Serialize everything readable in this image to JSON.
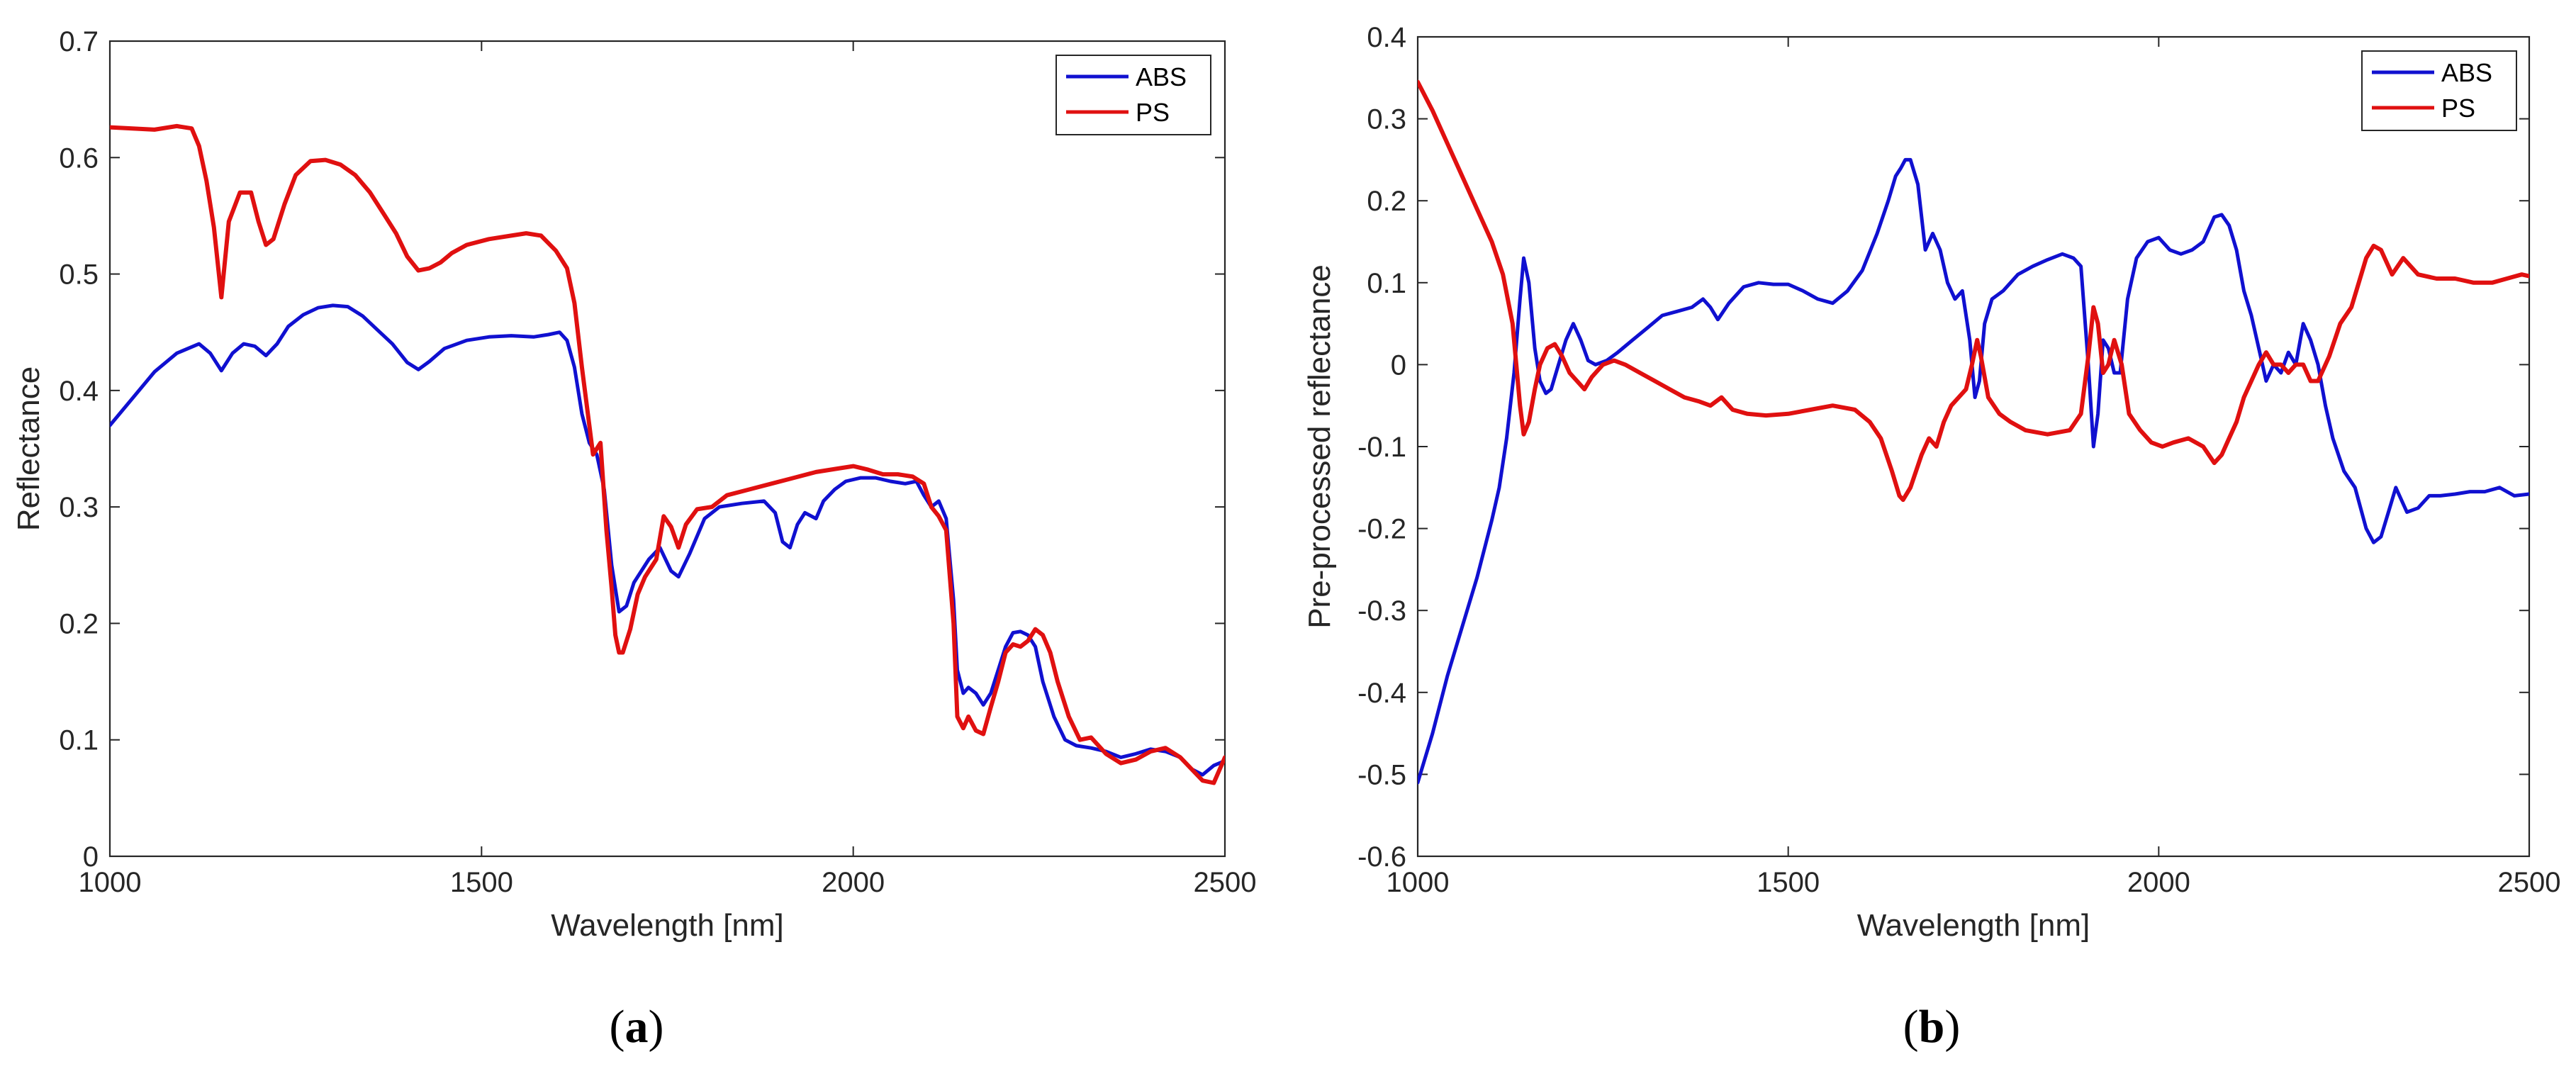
{
  "figure": {
    "caption_a": {
      "open": "(",
      "letter": "a",
      "close": ")"
    },
    "caption_b": {
      "open": "(",
      "letter": "b",
      "close": ")"
    }
  },
  "chart_data": [
    {
      "id": "a",
      "type": "line",
      "title": "",
      "xlabel": "Wavelength [nm]",
      "ylabel": "Reflectance",
      "xlim": [
        1000,
        2500
      ],
      "ylim": [
        0,
        0.7
      ],
      "xticks": [
        1000,
        1500,
        2000,
        2500
      ],
      "xtick_labels": [
        "1000",
        "1500",
        "2000",
        "2500"
      ],
      "yticks": [
        0,
        0.1,
        0.2,
        0.3,
        0.4,
        0.5,
        0.6,
        0.7
      ],
      "ytick_labels": [
        "0",
        "0.1",
        "0.2",
        "0.3",
        "0.4",
        "0.5",
        "0.6",
        "0.7"
      ],
      "grid": false,
      "legend_position": "top-right",
      "series": [
        {
          "name": "ABS",
          "color": "#1010d0",
          "x": [
            1000,
            1030,
            1060,
            1090,
            1120,
            1135,
            1150,
            1165,
            1180,
            1195,
            1210,
            1225,
            1240,
            1260,
            1280,
            1300,
            1320,
            1340,
            1360,
            1380,
            1400,
            1415,
            1430,
            1450,
            1480,
            1510,
            1540,
            1570,
            1590,
            1605,
            1615,
            1625,
            1635,
            1645,
            1655,
            1665,
            1675,
            1685,
            1695,
            1705,
            1715,
            1725,
            1740,
            1755,
            1765,
            1780,
            1800,
            1820,
            1850,
            1880,
            1895,
            1905,
            1915,
            1925,
            1935,
            1950,
            1960,
            1975,
            1990,
            2010,
            2030,
            2050,
            2070,
            2085,
            2095,
            2105,
            2115,
            2125,
            2135,
            2140,
            2148,
            2155,
            2165,
            2175,
            2185,
            2195,
            2205,
            2215,
            2225,
            2235,
            2245,
            2255,
            2270,
            2285,
            2300,
            2320,
            2340,
            2360,
            2380,
            2400,
            2420,
            2440,
            2455,
            2470,
            2485,
            2500
          ],
          "y": [
            0.37,
            0.393,
            0.416,
            0.432,
            0.44,
            0.432,
            0.417,
            0.432,
            0.44,
            0.438,
            0.43,
            0.44,
            0.455,
            0.465,
            0.471,
            0.473,
            0.472,
            0.464,
            0.452,
            0.44,
            0.424,
            0.418,
            0.425,
            0.436,
            0.443,
            0.446,
            0.447,
            0.446,
            0.448,
            0.45,
            0.443,
            0.42,
            0.38,
            0.355,
            0.345,
            0.315,
            0.25,
            0.21,
            0.215,
            0.235,
            0.245,
            0.255,
            0.265,
            0.245,
            0.24,
            0.26,
            0.29,
            0.3,
            0.303,
            0.305,
            0.295,
            0.27,
            0.265,
            0.285,
            0.295,
            0.29,
            0.305,
            0.315,
            0.322,
            0.325,
            0.325,
            0.322,
            0.32,
            0.322,
            0.31,
            0.3,
            0.305,
            0.29,
            0.22,
            0.16,
            0.14,
            0.145,
            0.14,
            0.13,
            0.14,
            0.16,
            0.18,
            0.192,
            0.193,
            0.19,
            0.18,
            0.15,
            0.12,
            0.1,
            0.095,
            0.093,
            0.09,
            0.085,
            0.088,
            0.092,
            0.09,
            0.085,
            0.075,
            0.07,
            0.078,
            0.082
          ]
        },
        {
          "name": "PS",
          "color": "#e01010",
          "x": [
            1000,
            1030,
            1060,
            1090,
            1110,
            1120,
            1130,
            1140,
            1150,
            1160,
            1175,
            1190,
            1200,
            1210,
            1220,
            1235,
            1250,
            1270,
            1290,
            1310,
            1330,
            1350,
            1370,
            1385,
            1400,
            1415,
            1430,
            1445,
            1460,
            1480,
            1510,
            1540,
            1560,
            1580,
            1600,
            1615,
            1625,
            1635,
            1645,
            1650,
            1660,
            1668,
            1675,
            1680,
            1685,
            1690,
            1700,
            1710,
            1720,
            1735,
            1745,
            1755,
            1765,
            1775,
            1790,
            1810,
            1830,
            1860,
            1890,
            1920,
            1950,
            1980,
            2000,
            2020,
            2040,
            2060,
            2080,
            2095,
            2105,
            2115,
            2125,
            2135,
            2140,
            2148,
            2155,
            2165,
            2175,
            2185,
            2195,
            2205,
            2215,
            2225,
            2235,
            2245,
            2255,
            2265,
            2275,
            2290,
            2305,
            2320,
            2340,
            2360,
            2380,
            2400,
            2420,
            2440,
            2455,
            2470,
            2485,
            2500
          ],
          "y": [
            0.626,
            0.625,
            0.624,
            0.627,
            0.625,
            0.61,
            0.58,
            0.54,
            0.48,
            0.545,
            0.57,
            0.57,
            0.545,
            0.525,
            0.53,
            0.56,
            0.585,
            0.597,
            0.598,
            0.594,
            0.585,
            0.57,
            0.55,
            0.535,
            0.515,
            0.503,
            0.505,
            0.51,
            0.518,
            0.525,
            0.53,
            0.533,
            0.535,
            0.533,
            0.52,
            0.505,
            0.475,
            0.42,
            0.37,
            0.345,
            0.355,
            0.28,
            0.23,
            0.19,
            0.175,
            0.175,
            0.195,
            0.225,
            0.24,
            0.255,
            0.292,
            0.283,
            0.265,
            0.285,
            0.298,
            0.3,
            0.31,
            0.315,
            0.32,
            0.325,
            0.33,
            0.333,
            0.335,
            0.332,
            0.328,
            0.328,
            0.326,
            0.32,
            0.3,
            0.292,
            0.28,
            0.2,
            0.12,
            0.11,
            0.12,
            0.108,
            0.105,
            0.128,
            0.15,
            0.175,
            0.182,
            0.18,
            0.185,
            0.195,
            0.19,
            0.175,
            0.15,
            0.12,
            0.1,
            0.102,
            0.088,
            0.08,
            0.083,
            0.09,
            0.093,
            0.085,
            0.075,
            0.065,
            0.063,
            0.085
          ]
        }
      ]
    },
    {
      "id": "b",
      "type": "line",
      "title": "",
      "xlabel": "Wavelength [nm]",
      "ylabel": "Pre-processed reflectance",
      "xlim": [
        1000,
        2500
      ],
      "ylim": [
        -0.6,
        0.4
      ],
      "xticks": [
        1000,
        1500,
        2000,
        2500
      ],
      "xtick_labels": [
        "1000",
        "1500",
        "2000",
        "2500"
      ],
      "yticks": [
        -0.6,
        -0.5,
        -0.4,
        -0.3,
        -0.2,
        -0.1,
        0,
        0.1,
        0.2,
        0.3,
        0.4
      ],
      "ytick_labels": [
        "-0.6",
        "-0.5",
        "-0.4",
        "-0.3",
        "-0.2",
        "-0.1",
        "0",
        "0.1",
        "0.2",
        "0.3",
        "0.4"
      ],
      "grid": false,
      "legend_position": "top-right",
      "series": [
        {
          "name": "ABS",
          "color": "#1010d0",
          "x": [
            1000,
            1020,
            1040,
            1060,
            1080,
            1100,
            1110,
            1120,
            1130,
            1138,
            1143,
            1150,
            1158,
            1165,
            1173,
            1180,
            1190,
            1200,
            1210,
            1220,
            1230,
            1240,
            1255,
            1270,
            1290,
            1310,
            1330,
            1350,
            1370,
            1385,
            1395,
            1405,
            1420,
            1440,
            1460,
            1480,
            1500,
            1520,
            1540,
            1560,
            1580,
            1600,
            1620,
            1635,
            1645,
            1652,
            1658,
            1665,
            1675,
            1685,
            1695,
            1705,
            1715,
            1725,
            1735,
            1745,
            1752,
            1758,
            1765,
            1775,
            1790,
            1810,
            1830,
            1850,
            1870,
            1885,
            1895,
            1905,
            1912,
            1918,
            1925,
            1932,
            1940,
            1948,
            1958,
            1970,
            1985,
            2000,
            2015,
            2030,
            2045,
            2060,
            2075,
            2085,
            2095,
            2105,
            2115,
            2125,
            2135,
            2145,
            2155,
            2165,
            2175,
            2185,
            2195,
            2205,
            2215,
            2225,
            2235,
            2250,
            2265,
            2280,
            2290,
            2300,
            2310,
            2320,
            2335,
            2350,
            2365,
            2380,
            2400,
            2420,
            2440,
            2460,
            2480,
            2500
          ],
          "y": [
            -0.51,
            -0.45,
            -0.38,
            -0.32,
            -0.26,
            -0.19,
            -0.15,
            -0.09,
            -0.01,
            0.08,
            0.13,
            0.1,
            0.02,
            -0.02,
            -0.035,
            -0.03,
            0.0,
            0.03,
            0.05,
            0.03,
            0.005,
            0.0,
            0.005,
            0.015,
            0.03,
            0.045,
            0.06,
            0.065,
            0.07,
            0.08,
            0.07,
            0.055,
            0.075,
            0.095,
            0.1,
            0.098,
            0.098,
            0.09,
            0.08,
            0.075,
            0.09,
            0.115,
            0.16,
            0.2,
            0.23,
            0.24,
            0.25,
            0.25,
            0.22,
            0.14,
            0.16,
            0.14,
            0.1,
            0.08,
            0.09,
            0.03,
            -0.04,
            -0.02,
            0.05,
            0.08,
            0.09,
            0.11,
            0.12,
            0.128,
            0.135,
            0.13,
            0.12,
            0.0,
            -0.1,
            -0.06,
            0.03,
            0.02,
            -0.01,
            -0.01,
            0.08,
            0.13,
            0.15,
            0.155,
            0.14,
            0.135,
            0.14,
            0.15,
            0.18,
            0.183,
            0.17,
            0.14,
            0.09,
            0.06,
            0.02,
            -0.02,
            0.0,
            -0.01,
            0.015,
            0.0,
            0.05,
            0.03,
            0.0,
            -0.05,
            -0.09,
            -0.13,
            -0.15,
            -0.2,
            -0.217,
            -0.21,
            -0.18,
            -0.15,
            -0.18,
            -0.175,
            -0.16,
            -0.16,
            -0.158,
            -0.155,
            -0.155,
            -0.15,
            -0.16,
            -0.158
          ]
        },
        {
          "name": "PS",
          "color": "#e01010",
          "x": [
            1000,
            1020,
            1040,
            1060,
            1080,
            1100,
            1115,
            1128,
            1138,
            1143,
            1150,
            1158,
            1165,
            1175,
            1185,
            1195,
            1205,
            1215,
            1225,
            1235,
            1250,
            1265,
            1280,
            1300,
            1320,
            1340,
            1360,
            1380,
            1395,
            1410,
            1425,
            1445,
            1470,
            1500,
            1530,
            1560,
            1590,
            1610,
            1625,
            1640,
            1650,
            1655,
            1665,
            1680,
            1690,
            1700,
            1710,
            1720,
            1730,
            1740,
            1748,
            1755,
            1760,
            1770,
            1785,
            1800,
            1820,
            1850,
            1880,
            1895,
            1905,
            1912,
            1918,
            1925,
            1932,
            1940,
            1950,
            1960,
            1975,
            1990,
            2005,
            2020,
            2040,
            2060,
            2075,
            2085,
            2095,
            2105,
            2115,
            2125,
            2135,
            2145,
            2155,
            2165,
            2175,
            2185,
            2195,
            2205,
            2215,
            2230,
            2245,
            2260,
            2270,
            2280,
            2290,
            2300,
            2315,
            2330,
            2350,
            2375,
            2400,
            2425,
            2450,
            2470,
            2490,
            2500
          ],
          "y": [
            0.345,
            0.31,
            0.27,
            0.23,
            0.19,
            0.15,
            0.11,
            0.05,
            -0.05,
            -0.085,
            -0.07,
            -0.03,
            0.0,
            0.02,
            0.025,
            0.01,
            -0.01,
            -0.02,
            -0.03,
            -0.015,
            0.0,
            0.005,
            0.0,
            -0.01,
            -0.02,
            -0.03,
            -0.04,
            -0.045,
            -0.05,
            -0.04,
            -0.055,
            -0.06,
            -0.062,
            -0.06,
            -0.055,
            -0.05,
            -0.055,
            -0.07,
            -0.09,
            -0.13,
            -0.16,
            -0.165,
            -0.15,
            -0.11,
            -0.09,
            -0.1,
            -0.07,
            -0.05,
            -0.04,
            -0.03,
            0.0,
            0.03,
            0.01,
            -0.04,
            -0.06,
            -0.07,
            -0.08,
            -0.085,
            -0.08,
            -0.06,
            0.01,
            0.07,
            0.05,
            -0.01,
            0.0,
            0.03,
            0.0,
            -0.06,
            -0.08,
            -0.095,
            -0.1,
            -0.095,
            -0.09,
            -0.1,
            -0.12,
            -0.11,
            -0.09,
            -0.07,
            -0.04,
            -0.02,
            0.0,
            0.015,
            0.0,
            0.0,
            -0.01,
            0.0,
            0.0,
            -0.02,
            -0.02,
            0.01,
            0.05,
            0.07,
            0.1,
            0.13,
            0.145,
            0.14,
            0.11,
            0.13,
            0.11,
            0.105,
            0.105,
            0.1,
            0.1,
            0.105,
            0.11,
            0.108
          ]
        }
      ]
    }
  ]
}
